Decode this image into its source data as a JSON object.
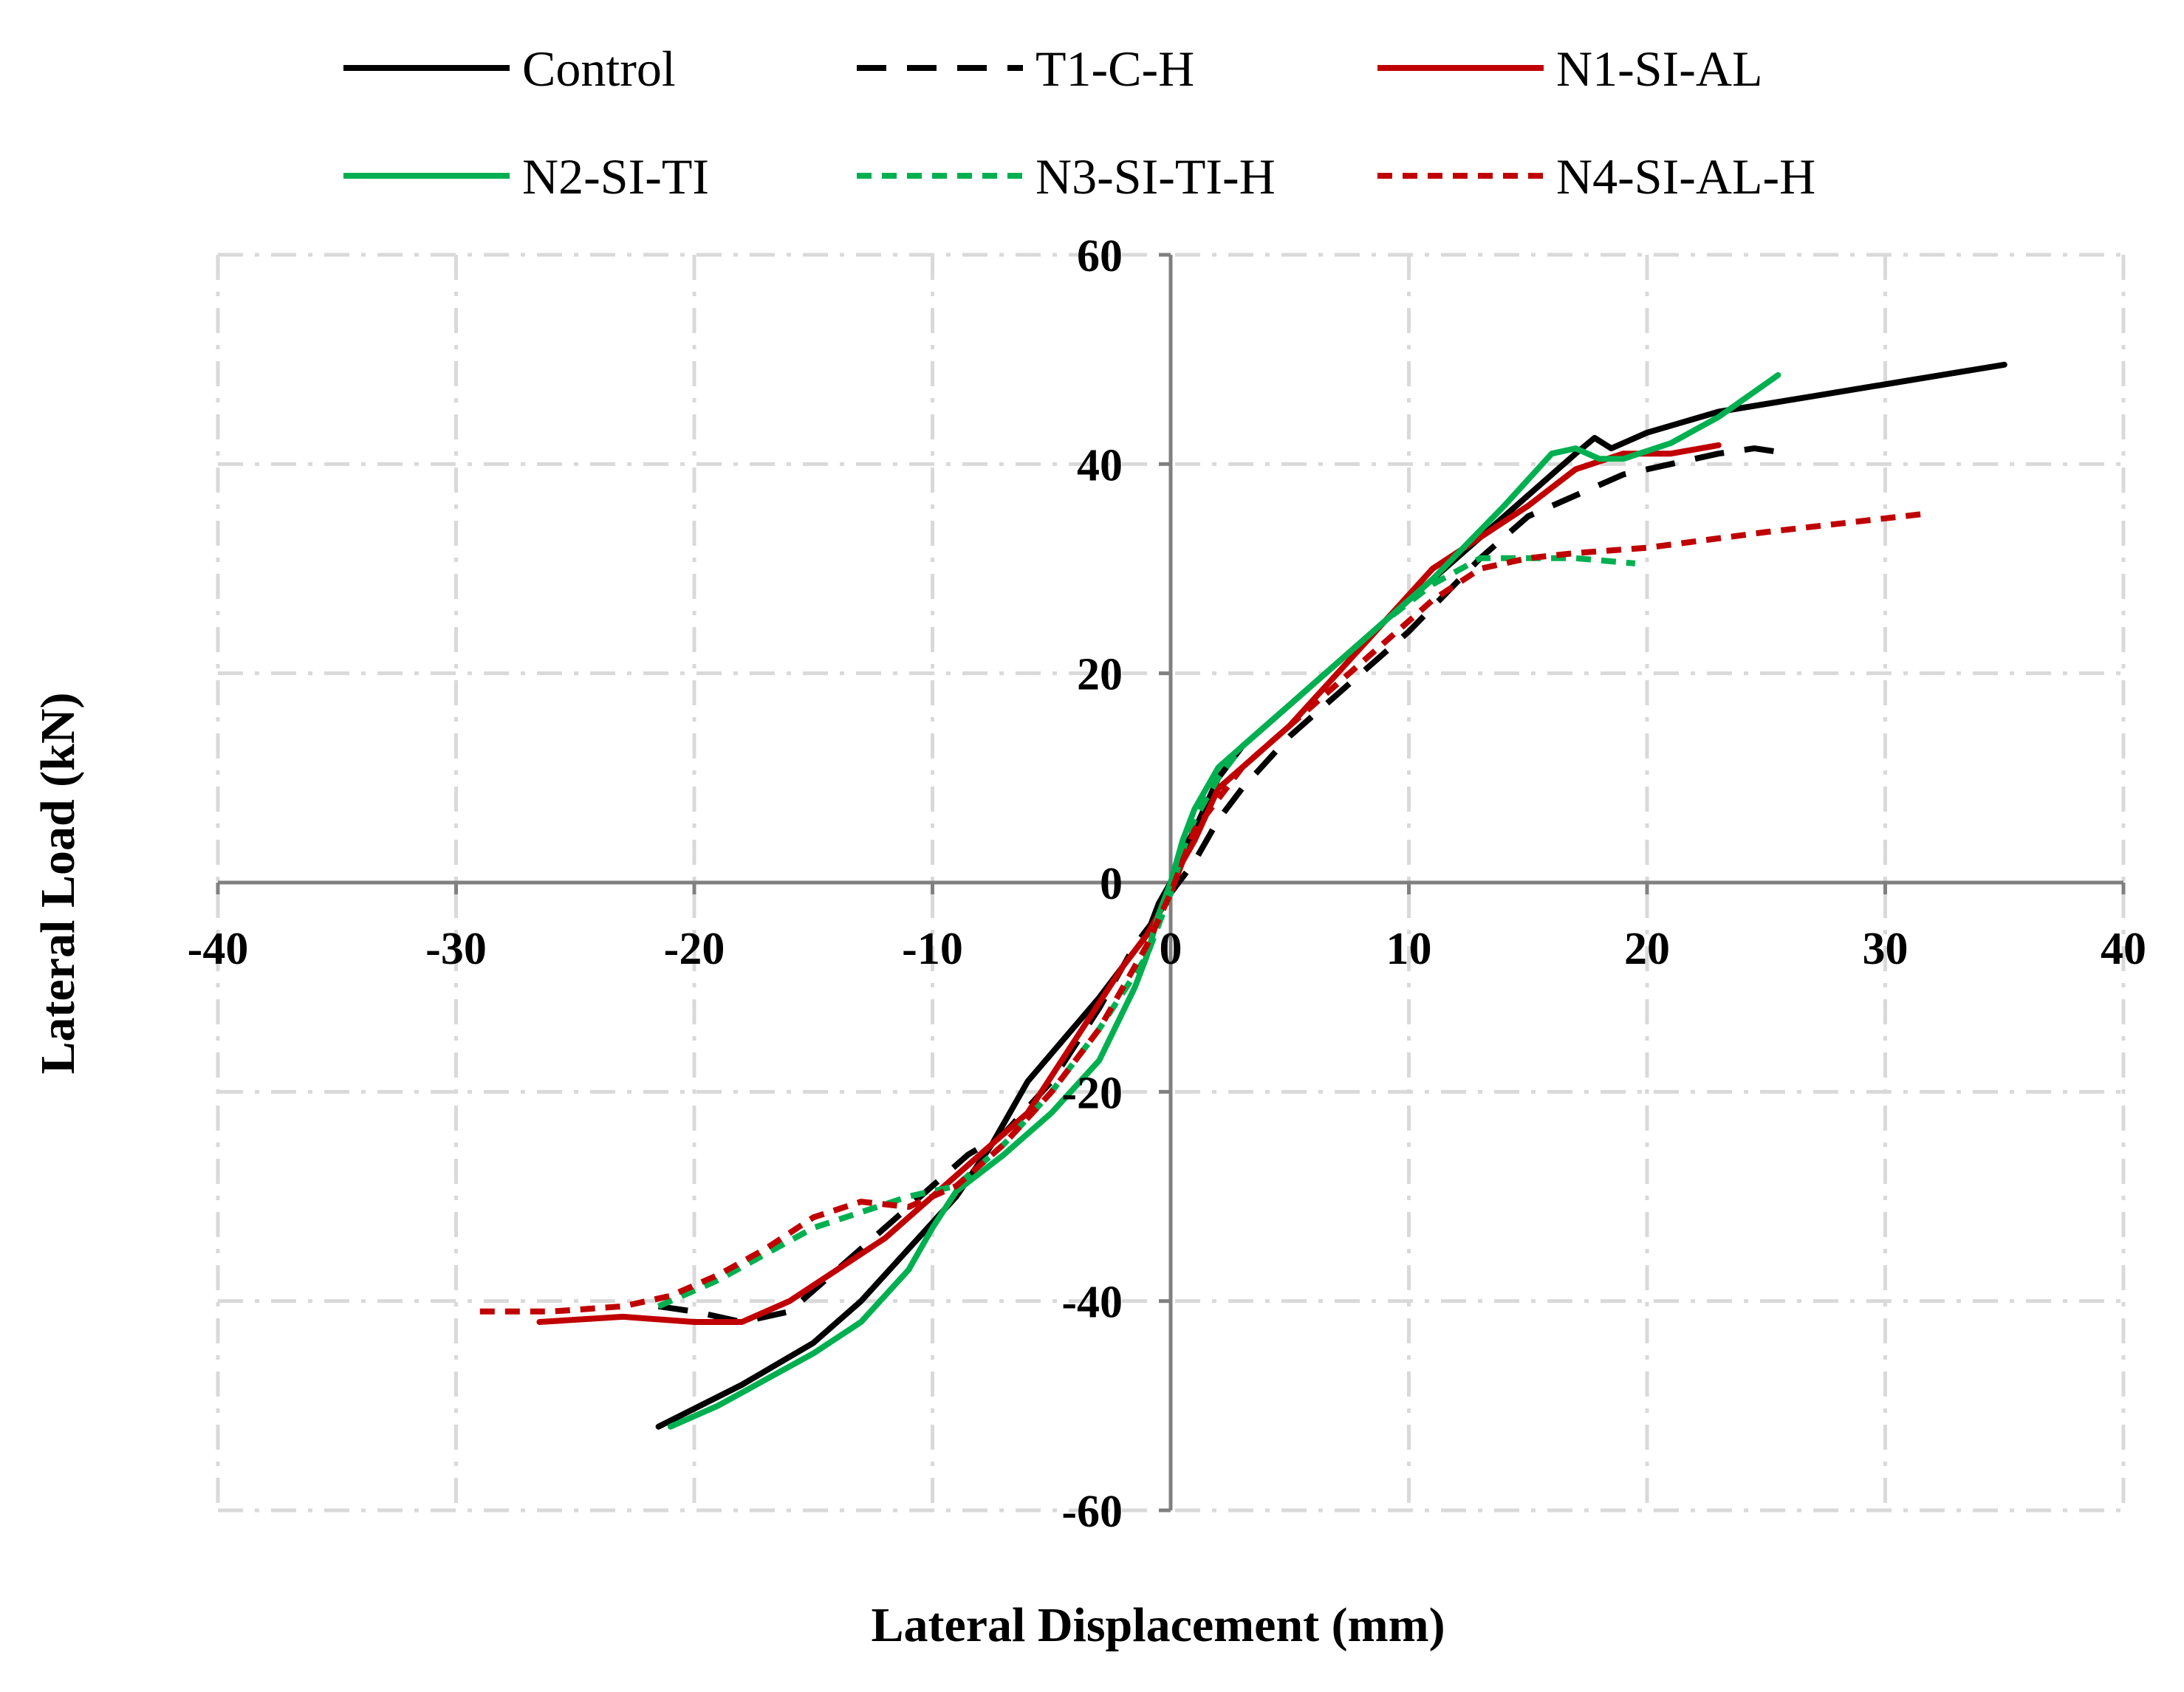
{
  "chart_data": {
    "type": "line",
    "title": "",
    "xlabel": "Lateral Displacement (mm)",
    "ylabel": "Lateral Load (kN)",
    "xlim": [
      -40,
      40
    ],
    "ylim": [
      -60,
      60
    ],
    "xticks": [
      -40,
      -30,
      -20,
      -10,
      0,
      10,
      20,
      30,
      40
    ],
    "xtick_labels": [
      "-40",
      "-30",
      "-20",
      "-10",
      "0",
      "10",
      "20",
      "30",
      "40"
    ],
    "yticks": [
      -60,
      -40,
      -20,
      0,
      20,
      40,
      60
    ],
    "ytick_labels": [
      "-60",
      "-40",
      "-20",
      "0",
      "20",
      "40",
      "60"
    ],
    "grid": true,
    "legend_position": "top",
    "series": [
      {
        "name": "Control",
        "color": "#000000",
        "dash": "solid",
        "points": [
          [
            -21.5,
            -52
          ],
          [
            -18,
            -48
          ],
          [
            -15,
            -44
          ],
          [
            -13,
            -40
          ],
          [
            -11,
            -35
          ],
          [
            -9,
            -30
          ],
          [
            -7.5,
            -25
          ],
          [
            -6,
            -19
          ],
          [
            -4.5,
            -15
          ],
          [
            -3,
            -11
          ],
          [
            -2,
            -8
          ],
          [
            -1,
            -5
          ],
          [
            -0.5,
            -2
          ],
          [
            0,
            0
          ],
          [
            0.5,
            3
          ],
          [
            1,
            5
          ],
          [
            2,
            10
          ],
          [
            3,
            13
          ],
          [
            5,
            17
          ],
          [
            7,
            21
          ],
          [
            10,
            27
          ],
          [
            13,
            33
          ],
          [
            15.5,
            38
          ],
          [
            17,
            41
          ],
          [
            17.8,
            42.5
          ],
          [
            18.5,
            41.5
          ],
          [
            20,
            43
          ],
          [
            23,
            45
          ],
          [
            27,
            46.5
          ],
          [
            31,
            48
          ],
          [
            35,
            49.5
          ]
        ]
      },
      {
        "name": "T1-C-H",
        "color": "#000000",
        "dash": "dashed",
        "points": [
          [
            -21.5,
            -40.5
          ],
          [
            -20,
            -41
          ],
          [
            -18,
            -42
          ],
          [
            -16,
            -41
          ],
          [
            -14,
            -37
          ],
          [
            -12,
            -33
          ],
          [
            -10,
            -29
          ],
          [
            -8.5,
            -26
          ],
          [
            -7,
            -24
          ],
          [
            -5,
            -19
          ],
          [
            -3,
            -12
          ],
          [
            -1.5,
            -6
          ],
          [
            -0.5,
            -3
          ],
          [
            0,
            -1
          ],
          [
            1,
            2
          ],
          [
            1.5,
            4
          ],
          [
            2,
            6
          ],
          [
            3,
            9
          ],
          [
            5,
            14
          ],
          [
            7,
            18
          ],
          [
            10,
            24
          ],
          [
            13,
            31
          ],
          [
            15,
            35
          ],
          [
            17,
            37
          ],
          [
            19,
            39
          ],
          [
            21,
            40
          ],
          [
            23,
            41
          ],
          [
            24.5,
            41.5
          ],
          [
            26,
            41
          ]
        ]
      },
      {
        "name": "N1-SI-AL",
        "color": "#C00000",
        "dash": "solid",
        "points": [
          [
            -26.5,
            -42
          ],
          [
            -23,
            -41.5
          ],
          [
            -20,
            -42
          ],
          [
            -18,
            -42
          ],
          [
            -16,
            -40
          ],
          [
            -14,
            -37
          ],
          [
            -12,
            -34
          ],
          [
            -10,
            -30
          ],
          [
            -8,
            -26
          ],
          [
            -6,
            -22
          ],
          [
            -4,
            -15
          ],
          [
            -2,
            -8
          ],
          [
            -1,
            -5
          ],
          [
            0,
            -1
          ],
          [
            0.5,
            2
          ],
          [
            1,
            4
          ],
          [
            2,
            9
          ],
          [
            3,
            11
          ],
          [
            5,
            15
          ],
          [
            7,
            20
          ],
          [
            9,
            25
          ],
          [
            11,
            30
          ],
          [
            13,
            33
          ],
          [
            15,
            36
          ],
          [
            17,
            39.5
          ],
          [
            19,
            41
          ],
          [
            21,
            41
          ],
          [
            23,
            41.8
          ]
        ]
      },
      {
        "name": "N2-SI-TI",
        "color": "#00B050",
        "dash": "solid",
        "points": [
          [
            -21,
            -52
          ],
          [
            -19,
            -50
          ],
          [
            -17,
            -47.5
          ],
          [
            -15,
            -45
          ],
          [
            -13,
            -42
          ],
          [
            -11,
            -37
          ],
          [
            -10,
            -33
          ],
          [
            -9,
            -29.5
          ],
          [
            -7,
            -26
          ],
          [
            -5,
            -22
          ],
          [
            -3,
            -17
          ],
          [
            -1.5,
            -10
          ],
          [
            -1,
            -7
          ],
          [
            -0.5,
            -3
          ],
          [
            0,
            0
          ],
          [
            0.5,
            4
          ],
          [
            1,
            7
          ],
          [
            2,
            11
          ],
          [
            3,
            13
          ],
          [
            5,
            17
          ],
          [
            8,
            23
          ],
          [
            11,
            29
          ],
          [
            14,
            36
          ],
          [
            16,
            41
          ],
          [
            17,
            41.5
          ],
          [
            18,
            40.5
          ],
          [
            19,
            40.5
          ],
          [
            21,
            42
          ],
          [
            23,
            44.5
          ],
          [
            25.5,
            48.5
          ]
        ]
      },
      {
        "name": "N3-SI-TI-H",
        "color": "#00B050",
        "dash": "dotted",
        "points": [
          [
            -21.5,
            -40.5
          ],
          [
            -19,
            -38
          ],
          [
            -17,
            -35.5
          ],
          [
            -15,
            -33
          ],
          [
            -13,
            -31.5
          ],
          [
            -11,
            -30
          ],
          [
            -9,
            -29
          ],
          [
            -7,
            -25
          ],
          [
            -5,
            -20
          ],
          [
            -3,
            -14
          ],
          [
            -1,
            -7
          ],
          [
            0,
            -1
          ],
          [
            0.5,
            3
          ],
          [
            1,
            6
          ],
          [
            2,
            10
          ],
          [
            3,
            13
          ],
          [
            5,
            17
          ],
          [
            7,
            21
          ],
          [
            9,
            25
          ],
          [
            11,
            28.5
          ],
          [
            13,
            31
          ],
          [
            15,
            31
          ],
          [
            17,
            31
          ],
          [
            19.5,
            30.5
          ]
        ]
      },
      {
        "name": "N4-SI-AL-H",
        "color": "#C00000",
        "dash": "dotted",
        "points": [
          [
            -29,
            -41
          ],
          [
            -26,
            -41
          ],
          [
            -23,
            -40.5
          ],
          [
            -21,
            -39.5
          ],
          [
            -19,
            -37.5
          ],
          [
            -17,
            -35
          ],
          [
            -15,
            -32
          ],
          [
            -13,
            -30.5
          ],
          [
            -11,
            -31
          ],
          [
            -9,
            -29
          ],
          [
            -7,
            -25
          ],
          [
            -5,
            -20
          ],
          [
            -3,
            -14
          ],
          [
            -1,
            -6
          ],
          [
            0,
            -1
          ],
          [
            0.5,
            2
          ],
          [
            1,
            5
          ],
          [
            2,
            8
          ],
          [
            3,
            11
          ],
          [
            5,
            15
          ],
          [
            7,
            19
          ],
          [
            9,
            23
          ],
          [
            11,
            27
          ],
          [
            13,
            30
          ],
          [
            15,
            31
          ],
          [
            17,
            31.5
          ],
          [
            20,
            32
          ],
          [
            25,
            33.5
          ],
          [
            31.5,
            35.2
          ]
        ]
      }
    ]
  }
}
